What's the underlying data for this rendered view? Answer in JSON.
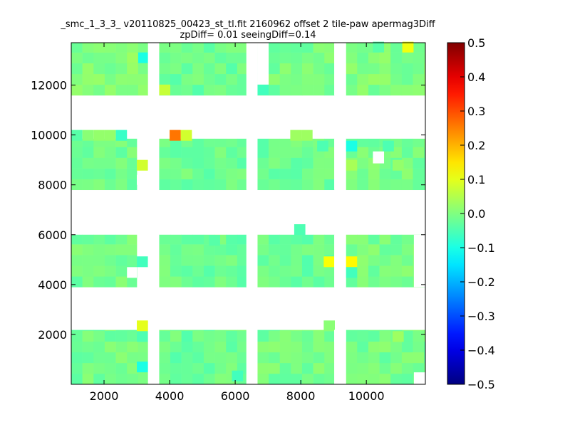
{
  "chart_data": {
    "type": "heatmap",
    "title_line1": "_smc_1_3_3_ v20110825_00423_st_tl.fit 2160962 offset 2 tile-paw apermag3Diff",
    "title_line2": "zpDiff= 0.01 seeingDiff=0.14",
    "xlim": [
      1000,
      11800
    ],
    "ylim": [
      0,
      13700
    ],
    "x_ticks": [
      2000,
      4000,
      6000,
      8000,
      10000
    ],
    "x_tick_labels": [
      "2000",
      "4000",
      "6000",
      "8000",
      "10000"
    ],
    "y_ticks": [
      2000,
      4000,
      6000,
      8000,
      10000,
      12000
    ],
    "y_tick_labels": [
      "2000",
      "4000",
      "6000",
      "8000",
      "10000",
      "12000"
    ],
    "colorbar": {
      "colormap": "jet",
      "range": [
        -0.5,
        0.5
      ],
      "ticks": [
        0.5,
        0.4,
        0.3,
        0.2,
        0.1,
        0.0,
        -0.1,
        -0.2,
        -0.3,
        -0.4,
        -0.5
      ],
      "tick_labels": [
        "0.5",
        "0.4",
        "0.3",
        "0.2",
        "0.1",
        "0.0",
        "−0.1",
        "−0.2",
        "−0.3",
        "−0.4",
        "−0.5"
      ]
    },
    "grid": false,
    "cell_size": [
      340,
      430
    ],
    "cells": [
      [
        1000,
        9770,
        -0.04
      ],
      [
        1340,
        9770,
        0.01
      ],
      [
        1680,
        9770,
        0.02
      ],
      [
        2020,
        9770,
        0.02
      ],
      [
        2360,
        9770,
        -0.07
      ],
      [
        4000,
        9770,
        0.26
      ],
      [
        4340,
        9770,
        0.08
      ],
      [
        7680,
        9770,
        0.03
      ],
      [
        8020,
        9770,
        0.03
      ],
      [
        3000,
        8570,
        0.08
      ],
      [
        3000,
        4700,
        -0.06
      ],
      [
        3000,
        2130,
        0.1
      ],
      [
        3000,
        1700,
        -0.05
      ],
      [
        3000,
        480,
        -0.1
      ],
      [
        3000,
        12880,
        -0.1
      ],
      [
        3680,
        11590,
        0.07
      ],
      [
        6680,
        11590,
        -0.06
      ],
      [
        8700,
        4700,
        0.12
      ],
      [
        9380,
        4700,
        0.13
      ],
      [
        9380,
        4270,
        -0.06
      ],
      [
        9380,
        8570,
        0.04
      ],
      [
        9380,
        9340,
        -0.1
      ],
      [
        11100,
        13310,
        0.11
      ],
      [
        2700,
        12880,
        0.03
      ],
      [
        5200,
        5560,
        -0.04
      ],
      [
        7800,
        5990,
        -0.05
      ],
      [
        5900,
        120,
        -0.06
      ],
      [
        10500,
        9340,
        -0.05
      ],
      [
        10800,
        8570,
        0.02
      ],
      [
        10800,
        1700,
        0.03
      ],
      [
        8500,
        9340,
        -0.05
      ],
      [
        10200,
        13310,
        -0.04
      ],
      [
        8700,
        2130,
        0.01
      ]
    ],
    "regions": [
      {
        "x": [
          1000,
          3340
        ],
        "y": [
          0,
          2180
        ],
        "base": -0.01,
        "note": ""
      },
      {
        "x": [
          3680,
          6340
        ],
        "y": [
          0,
          2180
        ],
        "base": -0.02
      },
      {
        "x": [
          6680,
          9020
        ],
        "y": [
          0,
          2180
        ],
        "base": -0.01
      },
      {
        "x": [
          9380,
          11800
        ],
        "y": [
          0,
          2180
        ],
        "base": -0.01
      },
      {
        "x": [
          1000,
          3000
        ],
        "y": [
          3900,
          6000
        ],
        "base": -0.01
      },
      {
        "x": [
          3680,
          6340
        ],
        "y": [
          3900,
          6000
        ],
        "base": -0.02
      },
      {
        "x": [
          6680,
          9020
        ],
        "y": [
          3900,
          6000
        ],
        "base": -0.02
      },
      {
        "x": [
          9380,
          11800
        ],
        "y": [
          3900,
          6000
        ],
        "base": -0.01
      },
      {
        "x": [
          1000,
          3000
        ],
        "y": [
          7800,
          9850
        ],
        "base": -0.01
      },
      {
        "x": [
          3680,
          6340
        ],
        "y": [
          7800,
          9850
        ],
        "base": -0.02
      },
      {
        "x": [
          6680,
          9020
        ],
        "y": [
          7800,
          9850
        ],
        "base": -0.02
      },
      {
        "x": [
          9380,
          11800
        ],
        "y": [
          7800,
          9850
        ],
        "base": -0.01
      },
      {
        "x": [
          1000,
          3340
        ],
        "y": [
          11590,
          13700
        ],
        "base": 0.0
      },
      {
        "x": [
          3680,
          6340
        ],
        "y": [
          11590,
          13700
        ],
        "base": -0.02
      },
      {
        "x": [
          6680,
          9020
        ],
        "y": [
          11590,
          13700
        ],
        "base": -0.01
      },
      {
        "x": [
          9380,
          11800
        ],
        "y": [
          11590,
          13700
        ],
        "base": 0.0
      }
    ],
    "holes": [
      [
        3340,
        11590,
        340,
        2110
      ],
      [
        3340,
        7800,
        340,
        2050
      ],
      [
        3340,
        3900,
        340,
        2100
      ],
      [
        3340,
        0,
        340,
        2180
      ],
      [
        6340,
        11590,
        340,
        2110
      ],
      [
        6340,
        7800,
        340,
        2050
      ],
      [
        6340,
        3900,
        340,
        2100
      ],
      [
        6340,
        0,
        340,
        2180
      ],
      [
        9020,
        11590,
        360,
        2110
      ],
      [
        9020,
        7800,
        360,
        2050
      ],
      [
        9020,
        3900,
        360,
        2100
      ],
      [
        9020,
        0,
        360,
        2180
      ],
      [
        6680,
        12020,
        340,
        1680
      ],
      [
        10200,
        8860,
        340,
        480
      ],
      [
        3000,
        8000,
        340,
        400
      ],
      [
        9020,
        1700,
        360,
        480
      ],
      [
        2700,
        4270,
        300,
        430
      ],
      [
        11450,
        3900,
        350,
        2100
      ],
      [
        1000,
        9850,
        2700,
        0
      ],
      [
        11450,
        0,
        350,
        480
      ]
    ],
    "extra_cells": [
      [
        1000,
        9770,
        0,
        0
      ],
      [
        1000,
        10200,
        2700,
        0
      ]
    ]
  }
}
